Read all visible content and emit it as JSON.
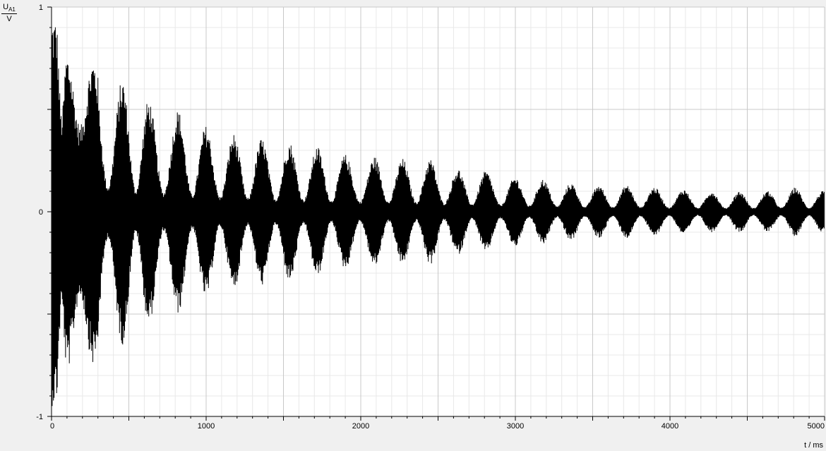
{
  "chart_data": {
    "type": "line",
    "title": "",
    "ylabel": {
      "symbol": "U",
      "subscript": "A1",
      "unit": "V"
    },
    "xlabel": "t / ms",
    "xlim": [
      0,
      5000
    ],
    "ylim": [
      -1,
      1
    ],
    "x_ticks": [
      0,
      1000,
      2000,
      3000,
      4000,
      5000
    ],
    "x_tick_labels": [
      "0",
      "1000",
      "2000",
      "3000",
      "4000",
      "5000"
    ],
    "y_ticks": [
      -1,
      0,
      1
    ],
    "y_tick_labels": [
      "-1",
      "0",
      "1"
    ],
    "grid": true,
    "legend": "none",
    "series": [
      {
        "color": "#000000",
        "description": "beating decaying oscillation; envelope peaks listed below",
        "envelope_peaks": [
          {
            "t": 30,
            "amp": 0.95
          },
          {
            "t": 100,
            "amp": 0.78
          },
          {
            "t": 270,
            "amp": 0.75
          },
          {
            "t": 460,
            "amp": 0.65
          },
          {
            "t": 630,
            "amp": 0.55
          },
          {
            "t": 820,
            "amp": 0.5
          },
          {
            "t": 1000,
            "amp": 0.42
          },
          {
            "t": 1180,
            "amp": 0.38
          },
          {
            "t": 1360,
            "amp": 0.36
          },
          {
            "t": 1540,
            "amp": 0.34
          },
          {
            "t": 1720,
            "amp": 0.32
          },
          {
            "t": 1900,
            "amp": 0.28
          },
          {
            "t": 2090,
            "amp": 0.27
          },
          {
            "t": 2270,
            "amp": 0.26
          },
          {
            "t": 2450,
            "amp": 0.26
          },
          {
            "t": 2630,
            "amp": 0.21
          },
          {
            "t": 2810,
            "amp": 0.2
          },
          {
            "t": 3000,
            "amp": 0.17
          },
          {
            "t": 3180,
            "amp": 0.16
          },
          {
            "t": 3360,
            "amp": 0.14
          },
          {
            "t": 3540,
            "amp": 0.13
          },
          {
            "t": 3720,
            "amp": 0.13
          },
          {
            "t": 3900,
            "amp": 0.12
          },
          {
            "t": 4090,
            "amp": 0.11
          },
          {
            "t": 4270,
            "amp": 0.1
          },
          {
            "t": 4450,
            "amp": 0.1
          },
          {
            "t": 4630,
            "amp": 0.1
          },
          {
            "t": 4810,
            "amp": 0.12
          },
          {
            "t": 4990,
            "amp": 0.1
          }
        ]
      }
    ]
  }
}
